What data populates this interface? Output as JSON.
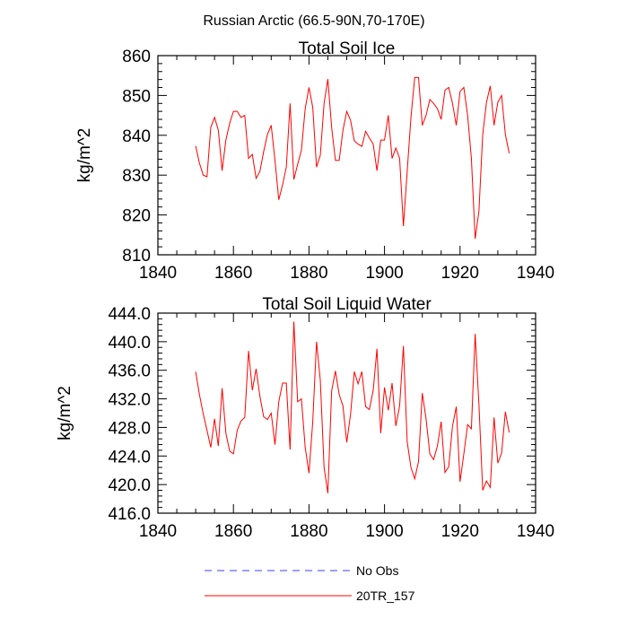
{
  "figure": {
    "title": "Russian Arctic (66.5-90N,70-170E)"
  },
  "chart_data": [
    {
      "type": "line",
      "title": "Total Soil Ice",
      "xlabel": "",
      "ylabel": "kg/m^2",
      "xlim": [
        1840,
        1940
      ],
      "ylim": [
        810,
        860
      ],
      "x_ticks": [
        1840,
        1860,
        1880,
        1900,
        1920,
        1940
      ],
      "y_ticks": [
        810,
        820,
        830,
        840,
        850,
        860
      ],
      "y_tick_labels": [
        "810",
        "820",
        "830",
        "840",
        "850",
        "860"
      ],
      "series": [
        {
          "name": "20TR_157",
          "color": "#ff0000",
          "x": [
            1850,
            1851,
            1852,
            1853,
            1854,
            1855,
            1856,
            1857,
            1858,
            1859,
            1860,
            1861,
            1862,
            1863,
            1864,
            1865,
            1866,
            1867,
            1868,
            1869,
            1870,
            1871,
            1872,
            1873,
            1874,
            1875,
            1876,
            1877,
            1878,
            1879,
            1880,
            1881,
            1882,
            1883,
            1884,
            1885,
            1886,
            1887,
            1888,
            1889,
            1890,
            1891,
            1892,
            1893,
            1894,
            1895,
            1896,
            1897,
            1898,
            1899,
            1900,
            1901,
            1902,
            1903,
            1904,
            1905,
            1906,
            1907,
            1908,
            1909,
            1910,
            1911,
            1912,
            1913,
            1914,
            1915,
            1916,
            1917,
            1918,
            1919,
            1920,
            1921,
            1922,
            1923,
            1924,
            1925,
            1926,
            1927,
            1928,
            1929,
            1930,
            1931,
            1932,
            1933
          ],
          "values": [
            837.3,
            833,
            830,
            829.6,
            842,
            844.5,
            841.3,
            831.1,
            838.8,
            843,
            846,
            846,
            844.5,
            845,
            834.2,
            835.2,
            829.2,
            830.9,
            835.9,
            840.2,
            842.5,
            833.7,
            823.8,
            827.5,
            832,
            848,
            828.9,
            832.7,
            836.3,
            846.7,
            852,
            847,
            832,
            835,
            848,
            854.1,
            842,
            833.7,
            833.7,
            841.3,
            846,
            843.8,
            838.6,
            837.8,
            837.2,
            841,
            839.3,
            837.8,
            831.1,
            838.8,
            838.8,
            845,
            834.2,
            836.8,
            834.2,
            817.2,
            830.9,
            844.5,
            854.5,
            854.5,
            842.5,
            845,
            849,
            848,
            846.7,
            844,
            851.3,
            852,
            848,
            842.5,
            851,
            852,
            845,
            834.2,
            814,
            821,
            840.2,
            848.3,
            852.4,
            842.5,
            848.3,
            850,
            840.2,
            835.5
          ]
        }
      ]
    },
    {
      "type": "line",
      "title": "Total Soil Liquid Water",
      "xlabel": "",
      "ylabel": "kg/m^2",
      "xlim": [
        1840,
        1940
      ],
      "ylim": [
        416,
        444
      ],
      "x_ticks": [
        1840,
        1860,
        1880,
        1900,
        1920,
        1940
      ],
      "y_ticks": [
        416,
        420,
        424,
        428,
        432,
        436,
        440,
        444
      ],
      "y_tick_labels": [
        "416.0",
        "420.0",
        "424.0",
        "428.0",
        "432.0",
        "436.0",
        "440.0",
        "444.0"
      ],
      "series": [
        {
          "name": "20TR_157",
          "color": "#ff0000",
          "x": [
            1850,
            1851,
            1852,
            1853,
            1854,
            1855,
            1856,
            1857,
            1858,
            1859,
            1860,
            1861,
            1862,
            1863,
            1864,
            1865,
            1866,
            1867,
            1868,
            1869,
            1870,
            1871,
            1872,
            1873,
            1874,
            1875,
            1876,
            1877,
            1878,
            1879,
            1880,
            1881,
            1882,
            1883,
            1884,
            1885,
            1886,
            1887,
            1888,
            1889,
            1890,
            1891,
            1892,
            1893,
            1894,
            1895,
            1896,
            1897,
            1898,
            1899,
            1900,
            1901,
            1902,
            1903,
            1904,
            1905,
            1906,
            1907,
            1908,
            1909,
            1910,
            1911,
            1912,
            1913,
            1914,
            1915,
            1916,
            1917,
            1918,
            1919,
            1920,
            1921,
            1922,
            1923,
            1924,
            1925,
            1926,
            1927,
            1928,
            1929,
            1930,
            1931,
            1932,
            1933
          ],
          "values": [
            435.8,
            432.6,
            429.9,
            427.6,
            425.2,
            429.2,
            425.4,
            433.5,
            427.2,
            424.7,
            424.3,
            427.6,
            428.9,
            429.4,
            438.7,
            433.2,
            436.2,
            432.4,
            429.5,
            429.1,
            430,
            425.6,
            431.6,
            434.2,
            434.2,
            424.9,
            442.8,
            431.6,
            432,
            425.2,
            421.6,
            428.8,
            440,
            434.6,
            422.4,
            418.8,
            433.1,
            435.9,
            432.6,
            431,
            425.9,
            429.8,
            435.8,
            434.1,
            435.8,
            430.9,
            430.5,
            433.2,
            439,
            427.2,
            433.6,
            430.4,
            434.2,
            428.2,
            431,
            439.4,
            426,
            422.4,
            420.8,
            423.2,
            432.8,
            429.2,
            424.3,
            423.5,
            425.4,
            428.8,
            421.7,
            422.5,
            428.2,
            430.9,
            420.4,
            424.3,
            428.4,
            427.8,
            441.1,
            431.2,
            419.2,
            420.5,
            419.6,
            429.4,
            423,
            424.4,
            430.2,
            427.3
          ]
        },
        {
          "name": "No Obs",
          "color": "#3c3cff",
          "x": [],
          "values": []
        }
      ]
    }
  ],
  "legend": {
    "items": [
      {
        "label": "No Obs",
        "color": "#3c3cff",
        "dash": "8,6"
      },
      {
        "label": "20TR_157",
        "color": "#ff0000",
        "dash": "none"
      }
    ]
  }
}
